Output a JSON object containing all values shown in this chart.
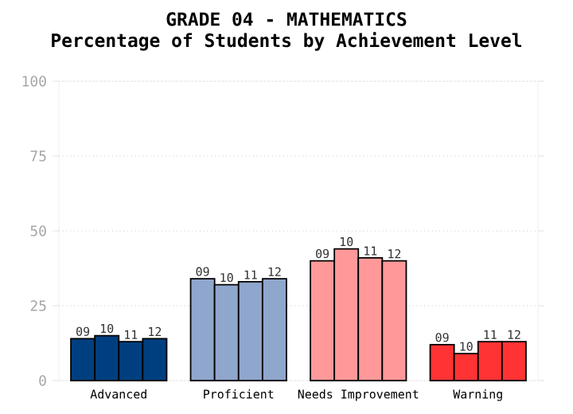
{
  "chart_data": {
    "type": "bar",
    "title": "GRADE 04 - MATHEMATICS",
    "subtitle": "Percentage of Students by Achievement Level",
    "categories": [
      "Advanced",
      "Proficient",
      "Needs Improvement",
      "Warning"
    ],
    "series": [
      {
        "name": "09",
        "colors": [
          "#003f7f",
          "#8fa6cd",
          "#ff9999",
          "#ff3333"
        ],
        "values": [
          14,
          34,
          40,
          12
        ]
      },
      {
        "name": "10",
        "colors": [
          "#003f7f",
          "#8fa6cd",
          "#ff9999",
          "#ff3333"
        ],
        "values": [
          15,
          32,
          44,
          9
        ]
      },
      {
        "name": "11",
        "colors": [
          "#003f7f",
          "#8fa6cd",
          "#ff9999",
          "#ff3333"
        ],
        "values": [
          13,
          33,
          41,
          13
        ]
      },
      {
        "name": "12",
        "colors": [
          "#003f7f",
          "#8fa6cd",
          "#ff9999",
          "#ff3333"
        ],
        "values": [
          14,
          34,
          40,
          13
        ]
      }
    ],
    "ylim": [
      0,
      100
    ],
    "yticks": [
      0,
      25,
      50,
      75,
      100
    ],
    "grid": "y",
    "legend": false
  }
}
